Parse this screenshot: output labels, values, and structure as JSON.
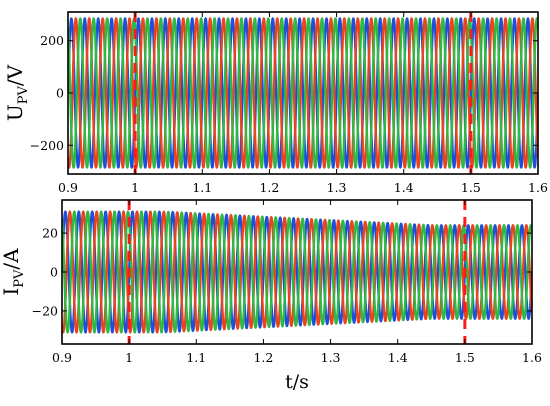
{
  "chart_data": [
    {
      "type": "line",
      "ylabel_main": "U",
      "ylabel_sub": "PV",
      "ylabel_unit": "/V",
      "xlabel": "",
      "xlim": [
        0.9,
        1.6
      ],
      "ylim": [
        -310,
        310
      ],
      "x_ticks": [
        "0.9",
        "1",
        "1.1",
        "1.2",
        "1.3",
        "1.4",
        "1.5",
        "1.6"
      ],
      "y_ticks": [
        {
          "value": -200,
          "label": "−200"
        },
        {
          "value": 0,
          "label": "0"
        },
        {
          "value": 200,
          "label": "200"
        }
      ],
      "frequency_hz": 50,
      "series": [
        {
          "phase_deg": 0,
          "amplitude_start": 285,
          "amplitude_end": 285,
          "color": "#1f4fd8"
        },
        {
          "phase_deg": -120,
          "amplitude_start": 285,
          "amplitude_end": 285,
          "color": "#e8451e"
        },
        {
          "phase_deg": 120,
          "amplitude_start": 285,
          "amplitude_end": 285,
          "color": "#2fb844"
        }
      ],
      "markers": [
        1.0,
        1.5
      ],
      "marker_color": "#ff1a1a"
    },
    {
      "type": "line",
      "ylabel_main": "I",
      "ylabel_sub": "PV",
      "ylabel_unit": "/A",
      "xlabel": "t/s",
      "xlim": [
        0.9,
        1.6
      ],
      "ylim": [
        -37,
        37
      ],
      "x_ticks": [
        "0.9",
        "1",
        "1.1",
        "1.2",
        "1.3",
        "1.4",
        "1.5",
        "1.6"
      ],
      "y_ticks": [
        {
          "value": -20,
          "label": "−20"
        },
        {
          "value": 0,
          "label": "0"
        },
        {
          "value": 20,
          "label": "20"
        }
      ],
      "frequency_hz": 50,
      "series": [
        {
          "phase_deg": 0,
          "amplitude_start": 31,
          "amplitude_end": 24,
          "color": "#1f4fd8"
        },
        {
          "phase_deg": -120,
          "amplitude_start": 31,
          "amplitude_end": 24,
          "color": "#e8451e"
        },
        {
          "phase_deg": 120,
          "amplitude_start": 31,
          "amplitude_end": 24,
          "color": "#2fb844"
        }
      ],
      "amplitude_change": {
        "start": 1.05,
        "end": 1.45
      },
      "markers": [
        1.0,
        1.5
      ],
      "marker_color": "#ff1a1a"
    }
  ]
}
